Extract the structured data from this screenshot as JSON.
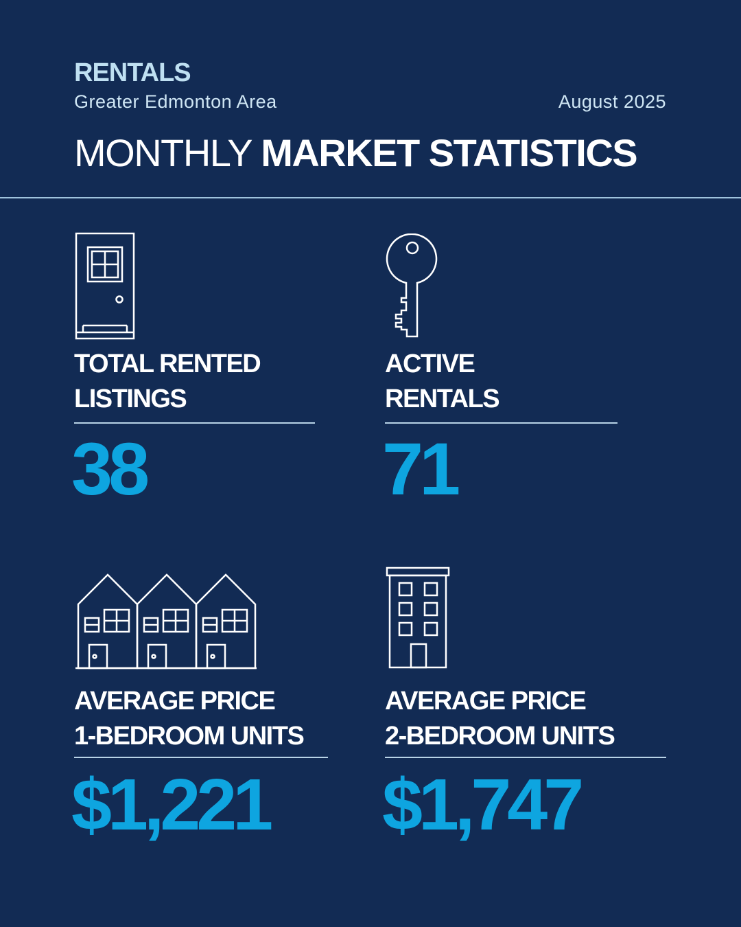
{
  "header": {
    "kicker": "RENTALS",
    "region": "Greater Edmonton Area",
    "date": "August 2025",
    "title_light": "MONTHLY",
    "title_bold": "MARKET STATISTICS"
  },
  "stats": [
    {
      "icon": "door-icon",
      "label_line1": "TOTAL RENTED",
      "label_line2": "LISTINGS",
      "value": "38"
    },
    {
      "icon": "key-icon",
      "label_line1": "ACTIVE",
      "label_line2": "RENTALS",
      "value": "71"
    },
    {
      "icon": "townhouses-icon",
      "label_line1": "AVERAGE PRICE",
      "label_line2": "1-BEDROOM UNITS",
      "value": "$1,221"
    },
    {
      "icon": "apartment-building-icon",
      "label_line1": "AVERAGE PRICE",
      "label_line2": "2-BEDROOM UNITS",
      "value": "$1,747"
    }
  ],
  "colors": {
    "background": "#122b54",
    "accent": "#0ea5e0",
    "kicker": "#bfe0f2",
    "text": "#ffffff"
  }
}
